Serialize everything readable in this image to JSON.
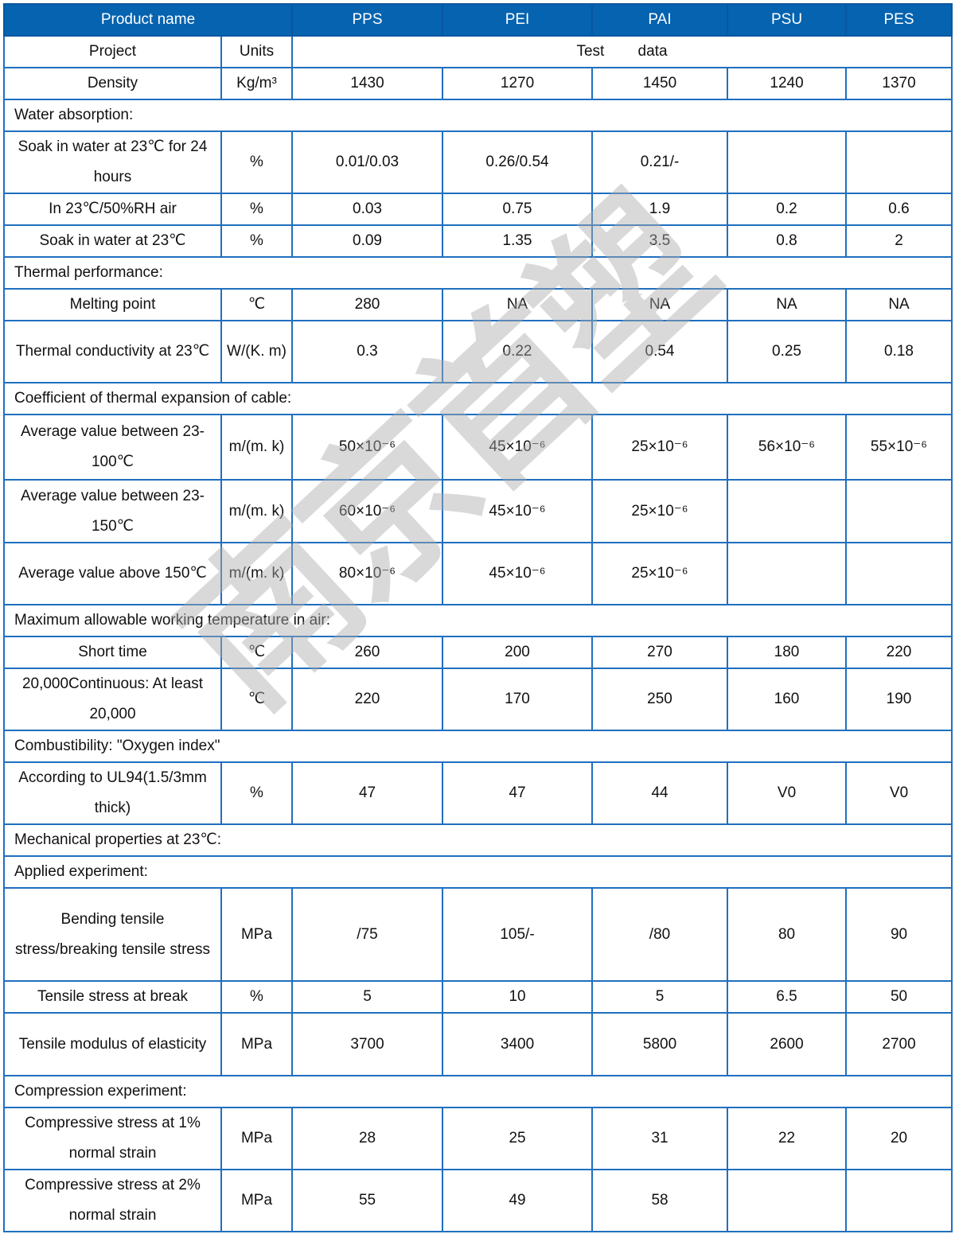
{
  "header": {
    "product_name": "Product name",
    "products": [
      "PPS",
      "PEI",
      "PAI",
      "PSU",
      "PES"
    ]
  },
  "subheader": {
    "project": "Project",
    "units": "Units",
    "test_data": "Test        data"
  },
  "rows": [
    {
      "label": "Density",
      "unit": "Kg/m³",
      "values": [
        "1430",
        "1270",
        "1450",
        "1240",
        "1370"
      ]
    },
    {
      "section": "Water absorption:"
    },
    {
      "label": "Soak in water at 23℃ for 24 hours",
      "unit": "%",
      "values": [
        "0.01/0.03",
        "0.26/0.54",
        "0.21/-",
        "",
        ""
      ]
    },
    {
      "label": "In 23℃/50%RH air",
      "unit": "%",
      "values": [
        "0.03",
        "0.75",
        "1.9",
        "0.2",
        "0.6"
      ]
    },
    {
      "label": "Soak in water at 23℃",
      "unit": "%",
      "values": [
        "0.09",
        "1.35",
        "3.5",
        "0.8",
        "2"
      ]
    },
    {
      "section": "Thermal performance:"
    },
    {
      "label": "Melting point",
      "unit": "℃",
      "values": [
        "280",
        "NA",
        "NA",
        "NA",
        "NA"
      ]
    },
    {
      "label": "Thermal conductivity at 23℃",
      "unit": "W/(K. m)",
      "values": [
        "0.3",
        "0.22",
        "0.54",
        "0.25",
        "0.18"
      ]
    },
    {
      "section": "Coefficient of thermal expansion of cable:"
    },
    {
      "label": "Average value between 23-100℃",
      "unit": "m/(m. k)",
      "values": [
        "50×10⁻⁶",
        "45×10⁻⁶",
        "25×10⁻⁶",
        "56×10⁻⁶",
        "55×10⁻⁶"
      ]
    },
    {
      "label": "Average value between 23-150℃",
      "unit": "m/(m. k)",
      "values": [
        "60×10⁻⁶",
        "45×10⁻⁶",
        "25×10⁻⁶",
        "",
        ""
      ]
    },
    {
      "label": "Average value above 150℃",
      "unit": "m/(m. k)",
      "values": [
        "80×10⁻⁶",
        "45×10⁻⁶",
        "25×10⁻⁶",
        "",
        ""
      ]
    },
    {
      "section": "Maximum allowable working temperature in air:"
    },
    {
      "label": "Short time",
      "unit": "℃",
      "values": [
        "260",
        "200",
        "270",
        "180",
        "220"
      ]
    },
    {
      "label": "20,000Continuous: At least 20,000",
      "unit": "℃",
      "values": [
        "220",
        "170",
        "250",
        "160",
        "190"
      ]
    },
    {
      "section": "Combustibility: \"Oxygen index\""
    },
    {
      "label": "According to UL94(1.5/3mm thick)",
      "unit": "%",
      "values": [
        "47",
        "47",
        "44",
        "V0",
        "V0"
      ]
    },
    {
      "section": "Mechanical properties at 23℃:"
    },
    {
      "section": "Applied experiment:"
    },
    {
      "label": "Bending tensile stress/breaking tensile stress",
      "unit": "MPa",
      "values": [
        "/75",
        "105/-",
        "/80",
        "80",
        "90"
      ]
    },
    {
      "label": "Tensile stress at break",
      "unit": "%",
      "values": [
        "5",
        "10",
        "5",
        "6.5",
        "50"
      ]
    },
    {
      "label": "Tensile modulus of elasticity",
      "unit": "MPa",
      "values": [
        "3700",
        "3400",
        "5800",
        "2600",
        "2700"
      ]
    },
    {
      "section": "Compression experiment:"
    },
    {
      "label": "Compressive stress at 1% normal strain",
      "unit": "MPa",
      "values": [
        "28",
        "25",
        "31",
        "22",
        "20"
      ]
    },
    {
      "label": "Compressive stress at 2% normal strain",
      "unit": "MPa",
      "values": [
        "55",
        "49",
        "58",
        "",
        ""
      ]
    }
  ],
  "watermark": "南京首塑",
  "colors": {
    "header_bg": "#0563b0",
    "border": "#1f6fbf",
    "watermark": "#cccccc"
  }
}
